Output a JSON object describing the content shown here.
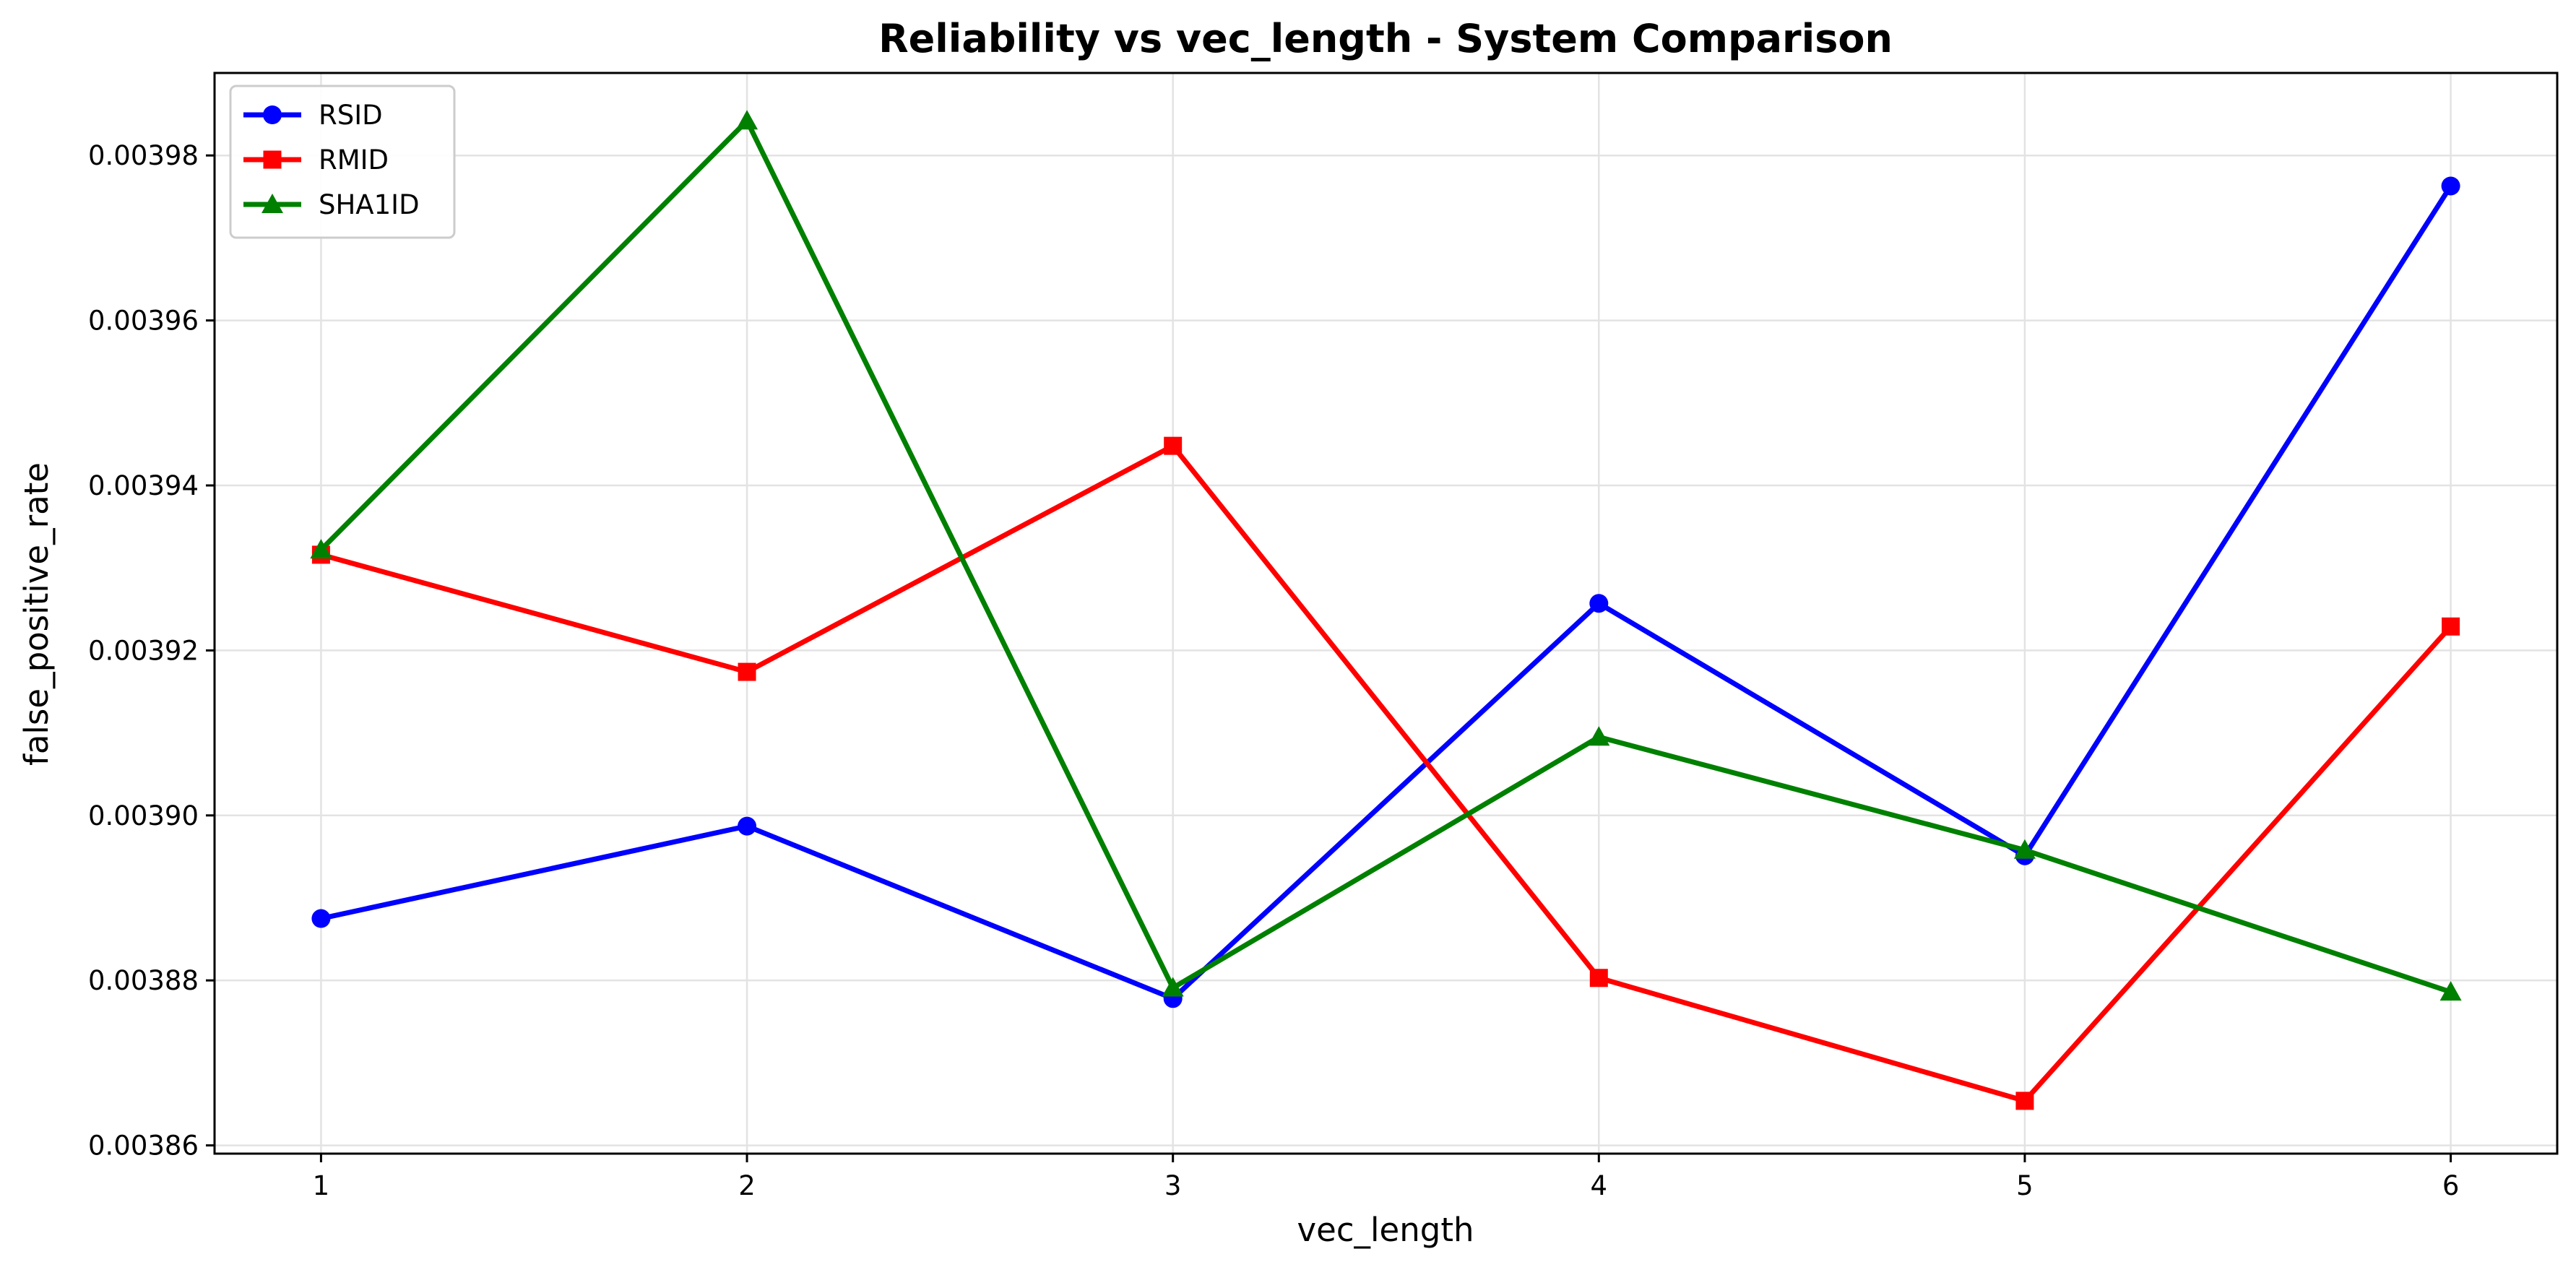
{
  "chart_data": {
    "type": "line",
    "title": "Reliability vs vec_length - System Comparison",
    "xlabel": "vec_length",
    "ylabel": "false_positive_rate",
    "x": [
      1,
      2,
      3,
      4,
      5,
      6
    ],
    "xticks": [
      "1",
      "2",
      "3",
      "4",
      "5",
      "6"
    ],
    "yticks": [
      "0.00386",
      "0.00388",
      "0.00390",
      "0.00392",
      "0.00394",
      "0.00396",
      "0.00398"
    ],
    "ytick_values": [
      0.00386,
      0.00388,
      0.0039,
      0.00392,
      0.00394,
      0.00396,
      0.00398
    ],
    "xlim": [
      0.75,
      6.25
    ],
    "ylim": [
      0.003859,
      0.00399
    ],
    "grid": true,
    "legend_position": "top-left",
    "series": [
      {
        "name": "RSID",
        "color": "#0000ff",
        "marker": "circle",
        "values": [
          0.0038875,
          0.0038987,
          0.0038778,
          0.0039257,
          0.0038951,
          0.0039763
        ]
      },
      {
        "name": "RMID",
        "color": "#ff0000",
        "marker": "square",
        "values": [
          0.0039316,
          0.0039174,
          0.0039448,
          0.0038803,
          0.0038654,
          0.0039229
        ]
      },
      {
        "name": "SHA1ID",
        "color": "#008000",
        "marker": "triangle",
        "values": [
          0.0039322,
          0.0039842,
          0.0038791,
          0.0039095,
          0.0038958,
          0.0038786
        ]
      }
    ]
  }
}
